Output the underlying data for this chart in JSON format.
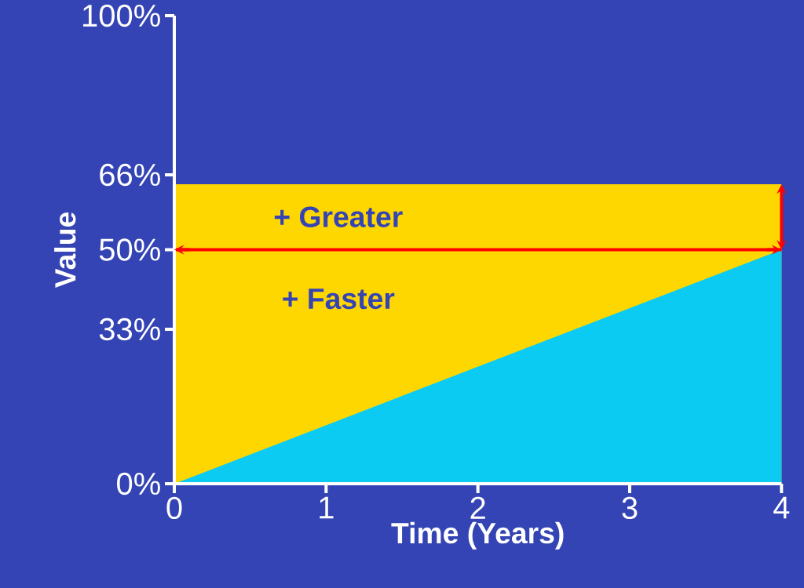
{
  "chart_data": {
    "type": "area",
    "xlabel": "Time (Years)",
    "ylabel": "Value",
    "xlim": [
      0,
      4
    ],
    "xticks": [
      0,
      1,
      2,
      3,
      4
    ],
    "ylim": [
      0,
      100
    ],
    "yticks": [
      {
        "value": 0,
        "label": "0%"
      },
      {
        "value": 33,
        "label": "33%"
      },
      {
        "value": 50,
        "label": "50%"
      },
      {
        "value": 66,
        "label": "66%"
      },
      {
        "value": 100,
        "label": "100%"
      }
    ],
    "x": [
      0,
      4
    ],
    "series": [
      {
        "color": "#ffd700",
        "values": [
          64,
          64
        ]
      },
      {
        "color": "#0bcbf3",
        "values": [
          0,
          50
        ]
      }
    ],
    "ref_lines": [
      {
        "axis": "y",
        "value": 50,
        "color": "#ff0000"
      }
    ],
    "annotations": [
      "+ Greater",
      "+ Faster"
    ]
  }
}
